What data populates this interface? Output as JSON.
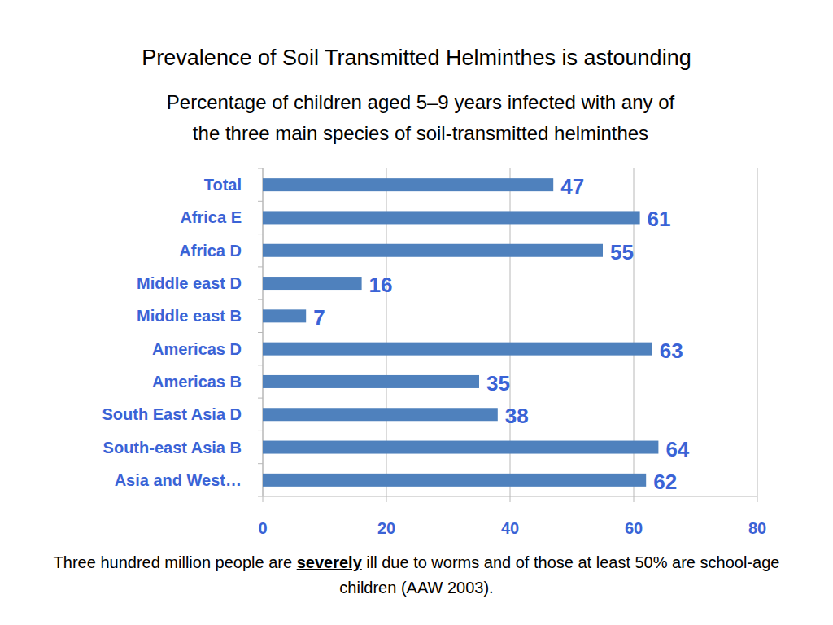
{
  "chart_data": {
    "type": "bar",
    "title": "Prevalence of Soil Transmitted Helminthes is astounding",
    "subtitle": [
      "Percentage of children aged 5–9 years infected with any of",
      "the three main species of soil-transmitted helminthes"
    ],
    "categories": [
      "Total",
      "Africa E",
      "Africa D",
      "Middle east D",
      "Middle east B",
      "Americas D",
      "Americas B",
      "South East Asia D",
      "South-east Asia B",
      "Asia and West…"
    ],
    "values": [
      47,
      61,
      55,
      16,
      7,
      63,
      35,
      38,
      64,
      62
    ],
    "color": "#4f81bd",
    "orientation": "horizontal",
    "xlim": [
      0,
      80
    ],
    "xticks": [
      0,
      20,
      40,
      60,
      80
    ],
    "grid": true,
    "data_labels": true,
    "note": [
      "Three hundred million people are ",
      "severely",
      " ill due to worms and of those at least 50% are school-age children (AAW 2003)."
    ]
  }
}
